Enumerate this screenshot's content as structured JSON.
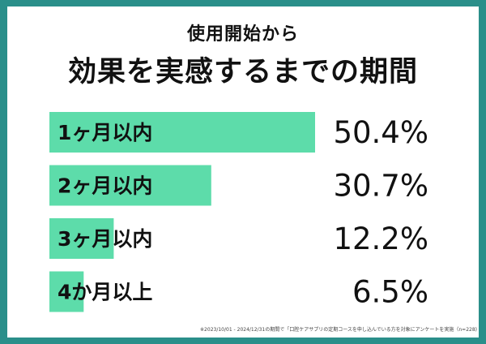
{
  "title_line1": "使用開始から",
  "title_line2": "効果を実感するまでの期間",
  "footnote": "※2023/10/01 - 2024/12/31の期間で「口腔ケアサプリの定期コースを申し込んでいる方を対象にアンケートを実施（n=228)",
  "colors": {
    "bar": "#5ddcaa",
    "background": "#2a8f8a",
    "text": "#111111"
  },
  "chart_data": {
    "type": "bar",
    "orientation": "horizontal",
    "categories": [
      "1ヶ月以内",
      "2ヶ月以内",
      "3ヶ月以内",
      "4か月以上"
    ],
    "values": [
      50.4,
      30.7,
      12.2,
      6.5
    ],
    "value_labels": [
      "50.4%",
      "30.7%",
      "12.2%",
      "6.5%"
    ],
    "unit": "%",
    "title": "効果を実感するまでの期間",
    "subtitle": "使用開始から",
    "xlabel": "",
    "ylabel": "",
    "xlim": [
      0,
      50.4
    ],
    "grid": false,
    "legend": "none"
  }
}
